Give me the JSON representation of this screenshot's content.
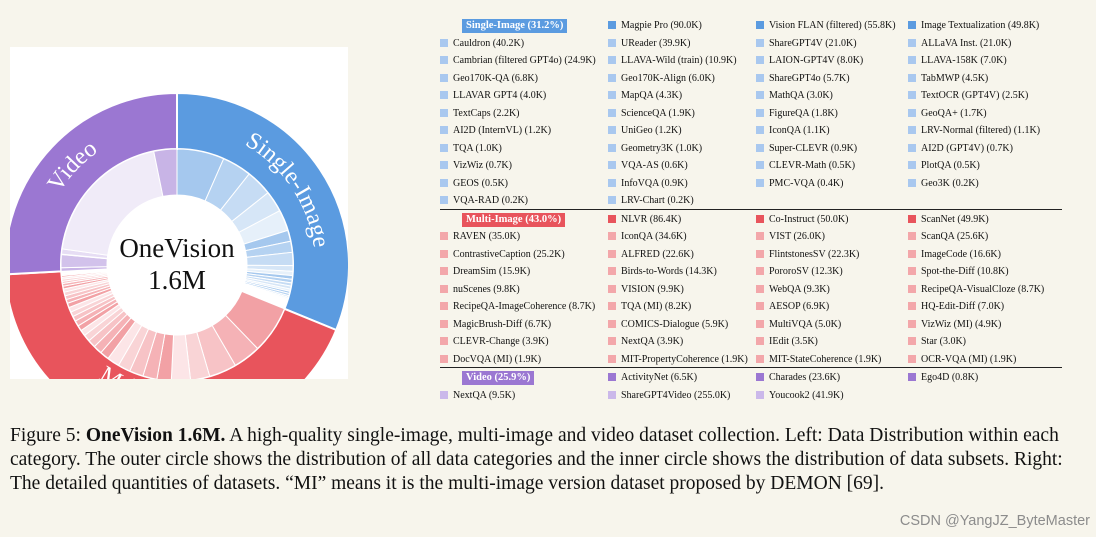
{
  "chart_data": {
    "type": "sunburst",
    "center_label_line1": "OneVision",
    "center_label_line2": "1.6M",
    "outer": [
      {
        "name": "Single-Image",
        "percent": 31.2,
        "color": "#5b9be0"
      },
      {
        "name": "Multi-Image",
        "percent": 43.0,
        "color": "#e8545c"
      },
      {
        "name": "Video",
        "percent": 25.9,
        "color": "#9b77d2"
      }
    ]
  },
  "legend": [
    {
      "title": "Single-Image (31.2%)",
      "color": "#5b9be0",
      "light": "#a9c8ef",
      "first_row": [
        "Magpie Pro (90.0K)",
        "Vision FLAN (filtered) (55.8K)",
        "Image Textualization (49.8K)"
      ],
      "items": [
        "Cauldron (40.2K)",
        "UReader (39.9K)",
        "ShareGPT4V (21.0K)",
        "ALLaVA Inst. (21.0K)",
        "Cambrian (filtered GPT4o) (24.9K)",
        "LLAVA-Wild (train) (10.9K)",
        "LAION-GPT4V (8.0K)",
        "LLAVA-158K (7.0K)",
        "Geo170K-QA (6.8K)",
        "Geo170K-Align (6.0K)",
        "ShareGPT4o (5.7K)",
        "TabMWP (4.5K)",
        "LLAVAR GPT4 (4.0K)",
        "MapQA (4.3K)",
        "MathQA (3.0K)",
        "TextOCR (GPT4V) (2.5K)",
        "TextCaps (2.2K)",
        "ScienceQA (1.9K)",
        "FigureQA (1.8K)",
        "GeoQA+ (1.7K)",
        "AI2D (InternVL) (1.2K)",
        "UniGeo (1.2K)",
        "IconQA (1.1K)",
        "LRV-Normal (filtered) (1.1K)",
        "TQA (1.0K)",
        "Geometry3K (1.0K)",
        "Super-CLEVR (0.9K)",
        "AI2D (GPT4V) (0.7K)",
        "VizWiz (0.7K)",
        "VQA-AS (0.6K)",
        "CLEVR-Math (0.5K)",
        "PlotQA (0.5K)",
        "GEOS (0.5K)",
        "InfoVQA (0.9K)",
        "PMC-VQA (0.4K)",
        "Geo3K (0.2K)",
        "VQA-RAD (0.2K)",
        "LRV-Chart (0.2K)"
      ]
    },
    {
      "title": "Multi-Image (43.0%)",
      "color": "#e8545c",
      "light": "#f3a7aa",
      "first_row": [
        "NLVR (86.4K)",
        "Co-Instruct (50.0K)",
        "ScanNet (49.9K)"
      ],
      "items": [
        "RAVEN (35.0K)",
        "IconQA (34.6K)",
        "VIST (26.0K)",
        "ScanQA (25.6K)",
        "ContrastiveCaption (25.2K)",
        "ALFRED (22.6K)",
        "FlintstonesSV (22.3K)",
        "ImageCode (16.6K)",
        "DreamSim (15.9K)",
        "Birds-to-Words (14.3K)",
        "PororoSV (12.3K)",
        "Spot-the-Diff (10.8K)",
        "nuScenes (9.8K)",
        "VISION (9.9K)",
        "WebQA (9.3K)",
        "RecipeQA-VisualCloze (8.7K)",
        "RecipeQA-ImageCoherence (8.7K)",
        "TQA (MI) (8.2K)",
        "AESOP (6.9K)",
        "HQ-Edit-Diff (7.0K)",
        "MagicBrush-Diff (6.7K)",
        "COMICS-Dialogue (5.9K)",
        "MultiVQA (5.0K)",
        "VizWiz (MI) (4.9K)",
        "CLEVR-Change (3.9K)",
        "NextQA (3.9K)",
        "IEdit (3.5K)",
        "Star (3.0K)",
        "DocVQA (MI) (1.9K)",
        "MIT-PropertyCoherence (1.9K)",
        "MIT-StateCoherence (1.9K)",
        "OCR-VQA (MI) (1.9K)"
      ]
    },
    {
      "title": "Video (25.9%)",
      "color": "#9b77d2",
      "light": "#cbb8ea",
      "first_row": [
        "ActivityNet (6.5K)",
        "Charades (23.6K)",
        "Ego4D (0.8K)"
      ],
      "items": [
        "NextQA (9.5K)",
        "ShareGPT4Video (255.0K)",
        "Youcook2 (41.9K)"
      ]
    }
  ],
  "caption": {
    "prefix": "Figure 5: ",
    "bold": "OneVision 1.6M.",
    "body": " A high-quality single-image, multi-image and video dataset collection. Left: Data Distribution within each category. The outer circle shows the distribution of all data categories and the inner circle shows the distribution of data subsets. Right: The detailed quantities of datasets. “MI” means it is the multi-image version dataset proposed by DEMON [69]."
  },
  "watermark": "CSDN @YangJZ_ByteMaster"
}
